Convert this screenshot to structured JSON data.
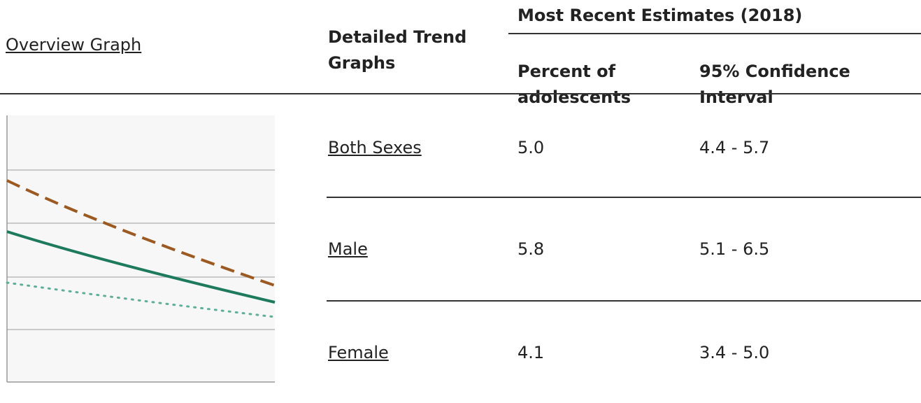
{
  "header": {
    "overview_link": "Overview Graph",
    "trend_column": "Detailed Trend Graphs",
    "group_header": "Most Recent Estimates (2018)",
    "percent_column": "Percent of adolescents",
    "ci_column": "95% Confidence Interval"
  },
  "table": {
    "rows": [
      [
        "Both Sexes",
        "5.0",
        "4.4 - 5.7"
      ],
      [
        "Male",
        "5.8",
        "5.1 - 6.5"
      ],
      [
        "Female",
        "4.1",
        "3.4 - 5.0"
      ]
    ]
  }
}
